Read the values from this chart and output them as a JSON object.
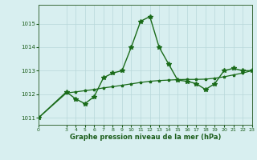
{
  "x": [
    0,
    3,
    4,
    5,
    6,
    7,
    8,
    9,
    10,
    11,
    12,
    13,
    14,
    15,
    16,
    17,
    18,
    19,
    20,
    21,
    22,
    23
  ],
  "y_main": [
    1011.0,
    1012.1,
    1011.8,
    1011.6,
    1011.9,
    1012.7,
    1012.9,
    1013.0,
    1014.0,
    1015.1,
    1015.3,
    1014.0,
    1013.3,
    1012.6,
    1012.55,
    1012.45,
    1012.2,
    1012.45,
    1013.0,
    1013.1,
    1013.0,
    1013.0
  ],
  "y_trend": [
    1011.0,
    1012.05,
    1012.1,
    1012.15,
    1012.2,
    1012.27,
    1012.32,
    1012.38,
    1012.44,
    1012.5,
    1012.55,
    1012.58,
    1012.6,
    1012.62,
    1012.63,
    1012.63,
    1012.64,
    1012.68,
    1012.74,
    1012.82,
    1012.9,
    1013.0
  ],
  "xlim": [
    0,
    23
  ],
  "ylim": [
    1010.7,
    1015.8
  ],
  "yticks": [
    1011,
    1012,
    1013,
    1014,
    1015
  ],
  "xticks": [
    0,
    3,
    4,
    5,
    6,
    7,
    8,
    9,
    10,
    11,
    12,
    13,
    14,
    15,
    16,
    17,
    18,
    19,
    20,
    21,
    22,
    23
  ],
  "xlabel": "Graphe pression niveau de la mer (hPa)",
  "line_color": "#1a6b1a",
  "bg_color": "#d8eff0",
  "grid_color": "#b8d8da",
  "axis_color": "#3a6a3a",
  "text_color": "#1a5c1a",
  "marker": "*",
  "marker_size": 4,
  "linewidth": 1.0,
  "trend_linewidth": 0.9
}
